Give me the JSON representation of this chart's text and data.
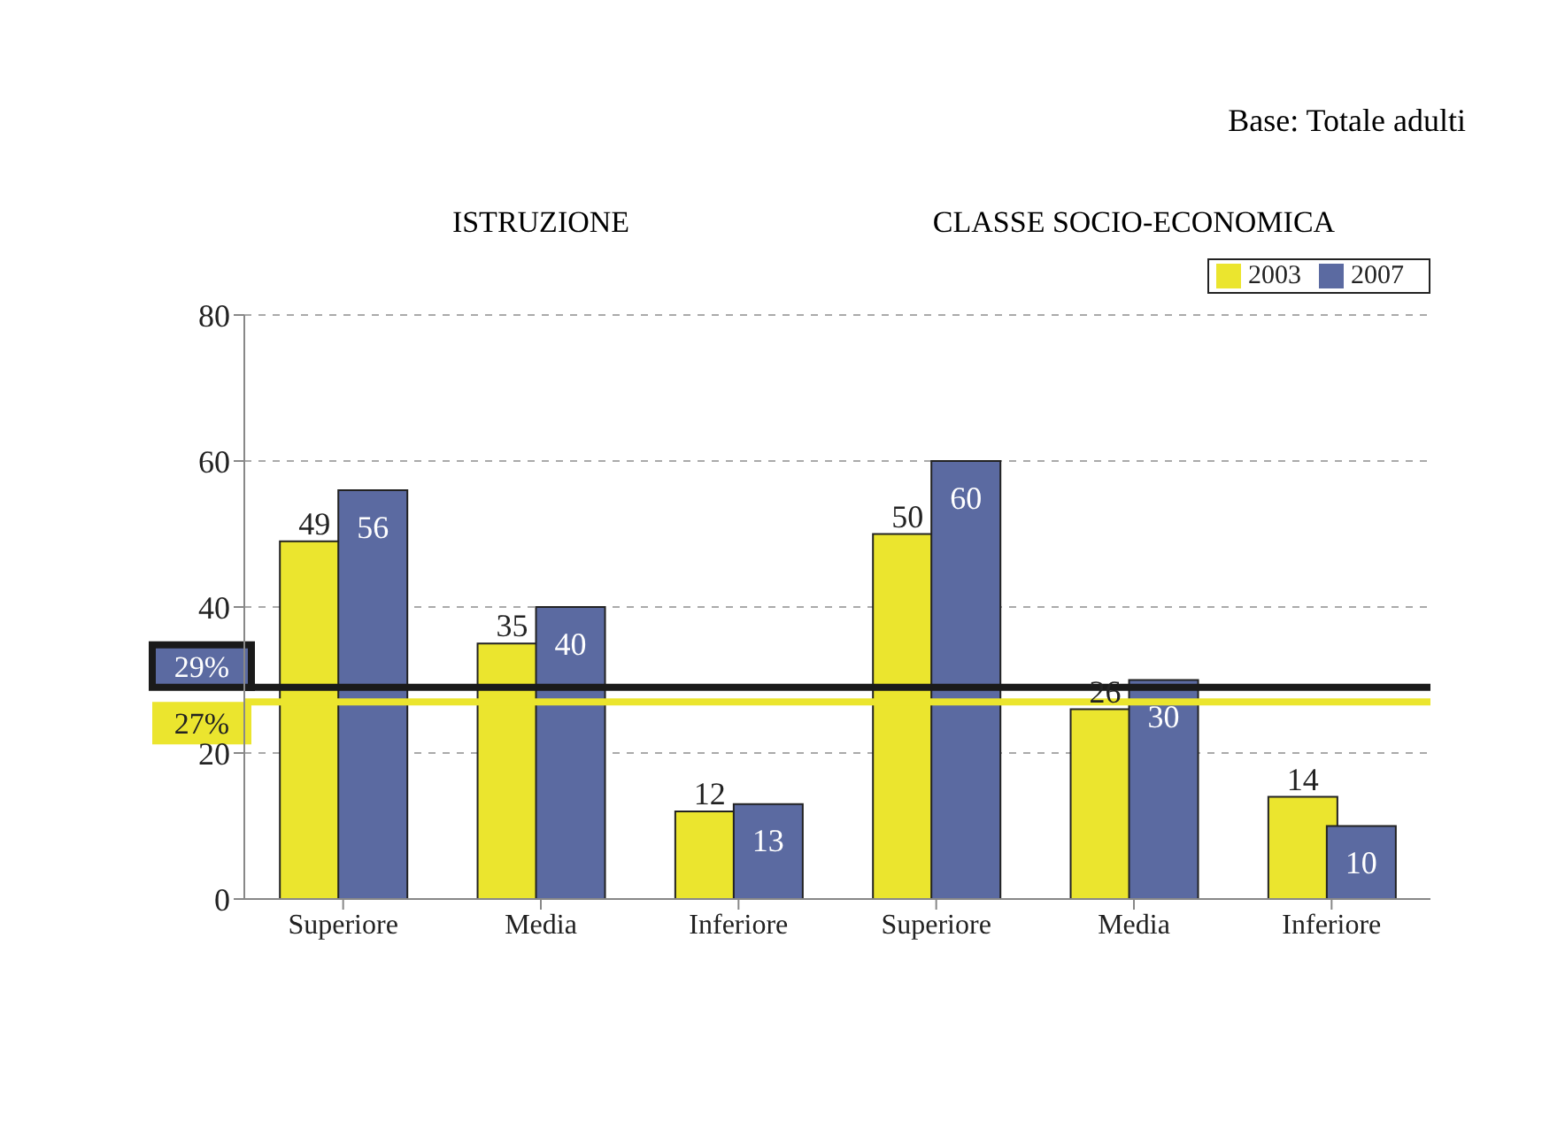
{
  "chart_data": {
    "type": "bar",
    "categories": [
      "Superiore",
      "Media",
      "Inferiore",
      "Superiore",
      "Media",
      "Inferiore"
    ],
    "series": [
      {
        "name": "2003",
        "color": "#ebe52e",
        "values": [
          49,
          35,
          12,
          50,
          26,
          14
        ]
      },
      {
        "name": "2007",
        "color": "#5b6aa1",
        "values": [
          56,
          40,
          13,
          60,
          30,
          10
        ]
      }
    ],
    "ylim": [
      0,
      80
    ],
    "yticks": [
      0,
      20,
      40,
      60,
      80
    ],
    "grid": "y",
    "legend": "top right",
    "data_labels": true,
    "ref_lines": [
      {
        "axis": "y",
        "value": 29,
        "label": "29%",
        "color": "#1a1a1a"
      },
      {
        "axis": "y",
        "value": 27,
        "label": "27%",
        "color": "#ebe52e"
      }
    ],
    "annotations": [
      "ISTRUZIONE",
      "CLASSE SOCIO-ECONOMICA",
      "Base: Totale adulti"
    ]
  }
}
